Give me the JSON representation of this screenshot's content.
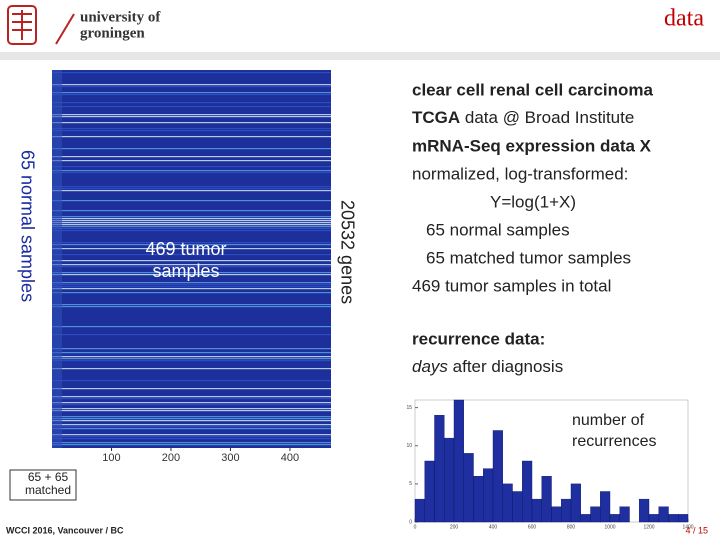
{
  "header": {
    "university": [
      "university of",
      "groningen"
    ],
    "title": "data"
  },
  "heatmap": {
    "left_label": "65 normal samples",
    "center_label": [
      "469 tumor",
      "samples"
    ],
    "right_label": "20532 genes",
    "bottom_label": [
      "65 + 65",
      "matched"
    ],
    "xlim": [
      0,
      469
    ],
    "xticks": [
      100,
      200,
      300,
      400
    ]
  },
  "description": {
    "lines": [
      [
        "clear cell renal cell carcinoma"
      ],
      [
        "TCGA",
        " data  @  Broad Institute"
      ],
      [
        "mRNA-Seq expression data X"
      ],
      [
        "normalized, log-transformed:"
      ],
      [
        "Y=log(1+X)"
      ],
      [
        "65 normal samples"
      ],
      [
        "65 matched tumor samples"
      ],
      [
        "469 tumor samples in total"
      ]
    ],
    "recurrence": [
      "recurrence data:",
      "days",
      " after diagnosis"
    ]
  },
  "chart_data": {
    "type": "histogram",
    "annotation": [
      "number of",
      "recurrences"
    ],
    "color": "#1f2fa0",
    "bins": [
      0,
      50,
      100,
      150,
      200,
      250,
      300,
      350,
      400,
      450,
      500,
      550,
      600,
      650,
      700,
      750,
      800,
      850,
      900,
      950,
      1000,
      1050,
      1100,
      1150,
      1200,
      1250,
      1300,
      1350,
      1400
    ],
    "counts": [
      3,
      8,
      14,
      11,
      16,
      9,
      6,
      7,
      12,
      5,
      4,
      8,
      3,
      6,
      2,
      3,
      5,
      1,
      2,
      4,
      1,
      2,
      0,
      3,
      1,
      2,
      1,
      1
    ],
    "xlim": [
      0,
      1400
    ],
    "xticks": [
      0,
      200,
      400,
      600,
      800,
      1000,
      1200,
      1400
    ],
    "ylim": [
      0,
      16
    ],
    "yticks": [
      0,
      5,
      10,
      15
    ]
  },
  "footer": {
    "left": "WCCI 2016, Vancouver / BC",
    "page": "4 / 15"
  }
}
